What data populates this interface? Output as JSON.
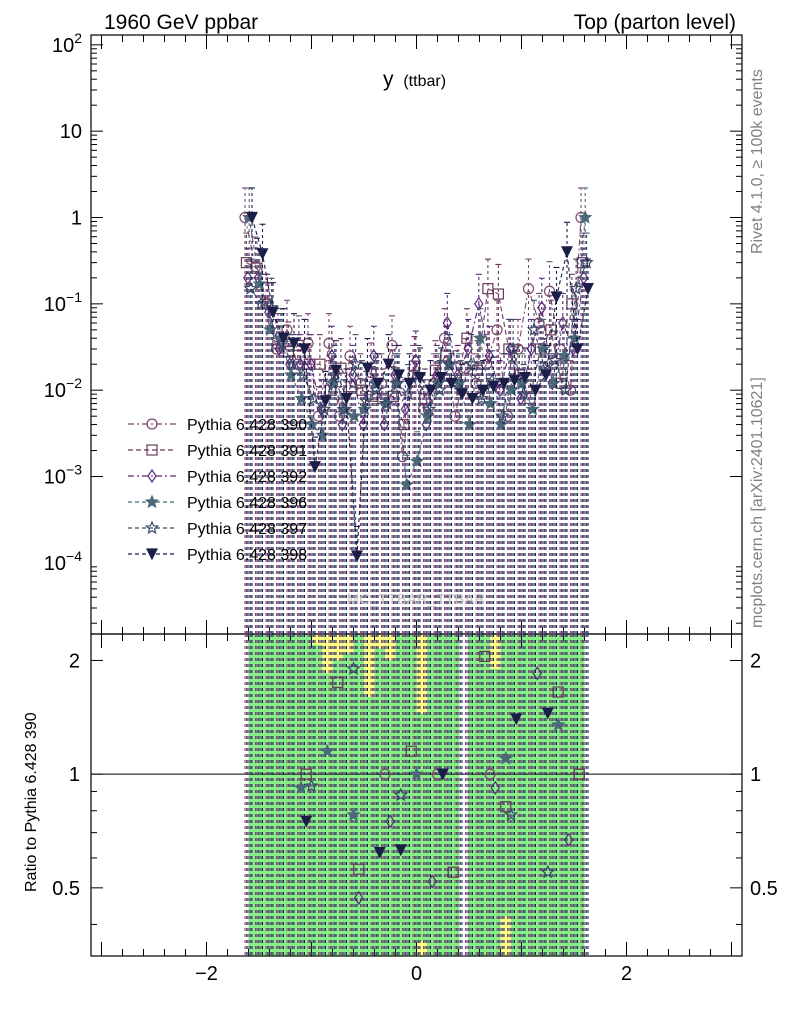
{
  "header": {
    "left": "1960 GeV ppbar",
    "right": "Top (parton level)"
  },
  "watermark": "MC_TTBAR_TTBAR",
  "side_labels": {
    "rivet": "Rivet 4.1.0, ≥ 100k events",
    "mcplots": "mcplots.cern.ch [arXiv:2401.10621]"
  },
  "chart_data": {
    "type": "line",
    "title": "y",
    "title_sub": "(ttbar)",
    "xlabel": "",
    "ylabel_top": "",
    "ylabel_ratio": "Ratio to Pythia 6.428 390",
    "xlim": [
      -3.1,
      3.1
    ],
    "ylim_top": [
      1.5e-05,
      130
    ],
    "yscale_top": "log",
    "ylim_ratio": [
      0.33,
      2.35
    ],
    "yscale_ratio": "log",
    "x_ticks": [
      -2,
      0,
      2
    ],
    "x_tick_labels": [
      "−2",
      "0",
      "2"
    ],
    "y_ticks_top": [
      {
        "value": 100,
        "base": "10",
        "exp": "2"
      },
      {
        "value": 10,
        "base": "10",
        "exp": ""
      },
      {
        "value": 1,
        "base": "1",
        "exp": ""
      },
      {
        "value": 0.1,
        "base": "10",
        "exp": "−1"
      },
      {
        "value": 0.01,
        "base": "10",
        "exp": "−2"
      },
      {
        "value": 0.001,
        "base": "10",
        "exp": "−3"
      },
      {
        "value": 0.0001,
        "base": "10",
        "exp": "−4"
      }
    ],
    "y_ticks_ratio": [
      {
        "value": 0.5,
        "label": "0.5"
      },
      {
        "value": 1,
        "label": "1"
      },
      {
        "value": 2,
        "label": "2"
      }
    ],
    "x": [
      -1.6,
      -1.5,
      -1.4,
      -1.3,
      -1.2,
      -1.1,
      -1.0,
      -0.9,
      -0.8,
      -0.7,
      -0.6,
      -0.5,
      -0.4,
      -0.3,
      -0.2,
      -0.1,
      0.0,
      0.1,
      0.2,
      0.3,
      0.4,
      0.5,
      0.6,
      0.7,
      0.8,
      0.9,
      1.0,
      1.1,
      1.2,
      1.3,
      1.4,
      1.5,
      1.6
    ],
    "legend_position": "middle-left",
    "series": [
      {
        "name": "Pythia 6.428 390",
        "color": "#7a4a6a",
        "marker": "circle-open",
        "values": [
          1.0,
          0.27,
          0.1,
          0.03,
          0.05,
          0.02,
          0.035,
          0.005,
          0.035,
          0.005,
          0.025,
          0.012,
          0.016,
          0.012,
          0.033,
          0.0017,
          0.015,
          0.006,
          0.012,
          0.04,
          0.005,
          0.018,
          0.012,
          0.02,
          0.05,
          0.005,
          0.03,
          0.15,
          0.06,
          0.14,
          0.03,
          0.01,
          1.0
        ]
      },
      {
        "name": "Pythia 6.428 391",
        "color": "#6a3a5a",
        "marker": "square-open",
        "values": [
          0.3,
          0.26,
          0.1,
          0.035,
          0.028,
          0.033,
          0.02,
          0.02,
          0.01,
          0.018,
          0.011,
          0.01,
          0.0085,
          0.008,
          0.0085,
          0.004,
          0.019,
          0.008,
          0.017,
          0.025,
          0.013,
          0.04,
          0.017,
          0.15,
          0.13,
          0.03,
          0.015,
          0.008,
          0.03,
          0.05,
          0.012,
          0.1,
          0.3
        ]
      },
      {
        "name": "Pythia 6.428 392",
        "color": "#5a2a7a",
        "marker": "diamond-open",
        "values": [
          0.2,
          0.2,
          0.08,
          0.03,
          0.02,
          0.02,
          0.02,
          0.006,
          0.025,
          0.004,
          0.015,
          0.004,
          0.025,
          0.004,
          0.015,
          0.006,
          0.022,
          0.004,
          0.015,
          0.06,
          0.015,
          0.03,
          0.1,
          0.025,
          0.01,
          0.03,
          0.008,
          0.03,
          0.09,
          0.012,
          0.06,
          0.03,
          0.2
        ]
      },
      {
        "name": "Pythia 6.428 396",
        "color": "#4a6a7a",
        "marker": "star-filled",
        "values": [
          1.0,
          0.17,
          0.05,
          0.04,
          0.015,
          0.008,
          0.004,
          0.003,
          0.012,
          0.006,
          0.005,
          0.006,
          0.012,
          0.007,
          0.012,
          0.0008,
          0.0015,
          0.005,
          0.012,
          0.02,
          0.012,
          0.004,
          0.04,
          0.007,
          0.004,
          0.01,
          0.012,
          0.006,
          0.03,
          0.012,
          0.025,
          0.04,
          1.0
        ]
      },
      {
        "name": "Pythia 6.428 397",
        "color": "#3a4a6a",
        "marker": "star-open",
        "values": [
          0.15,
          0.1,
          0.09,
          0.035,
          0.02,
          0.015,
          0.008,
          0.006,
          0.015,
          0.006,
          0.02,
          0.0075,
          0.01,
          0.007,
          0.012,
          0.009,
          0.015,
          0.006,
          0.01,
          0.02,
          0.01,
          0.02,
          0.008,
          0.013,
          0.005,
          0.03,
          0.009,
          0.05,
          0.018,
          0.022,
          0.01,
          0.15,
          0.3
        ]
      },
      {
        "name": "Pythia 6.428 398",
        "color": "#1a1e48",
        "marker": "triangle-down-filled",
        "values": [
          1.0,
          0.38,
          0.08,
          0.04,
          0.035,
          0.03,
          0.0013,
          0.0075,
          0.017,
          0.008,
          0.00012,
          0.018,
          0.012,
          0.02,
          0.015,
          0.012,
          0.014,
          0.01,
          0.014,
          0.012,
          0.009,
          0.008,
          0.01,
          0.011,
          0.012,
          0.013,
          0.014,
          0.01,
          0.015,
          0.12,
          0.4,
          0.03,
          0.15
        ]
      }
    ],
    "ratio_points": [
      {
        "series": 0,
        "x": [
          -0.3,
          0.2,
          0.7
        ],
        "values": [
          1.0,
          1.0,
          1.0
        ]
      },
      {
        "series": 1,
        "x": [
          -1.05,
          -0.75,
          -0.55,
          -0.05,
          0.35,
          0.65,
          0.85,
          1.35,
          1.55
        ],
        "values": [
          1.0,
          1.75,
          0.56,
          1.15,
          0.55,
          2.05,
          0.82,
          1.65,
          1.0
        ]
      },
      {
        "series": 2,
        "x": [
          -0.55,
          -0.25,
          0.15,
          0.75,
          1.15,
          1.45
        ],
        "values": [
          0.47,
          0.75,
          0.52,
          0.92,
          1.85,
          0.67
        ]
      },
      {
        "series": 3,
        "x": [
          -1.1,
          -0.85,
          -0.6,
          0.0,
          0.85,
          1.35
        ],
        "values": [
          0.92,
          1.15,
          0.78,
          1.0,
          1.1,
          1.35
        ]
      },
      {
        "series": 4,
        "x": [
          -1.0,
          -0.6,
          -0.15,
          0.9,
          1.25
        ],
        "values": [
          0.93,
          1.9,
          0.88,
          0.78,
          0.55
        ]
      },
      {
        "series": 5,
        "x": [
          -1.05,
          -0.35,
          -0.15,
          0.25,
          0.95,
          1.25
        ],
        "values": [
          0.75,
          0.62,
          0.63,
          1.0,
          1.4,
          1.45
        ]
      }
    ],
    "ratio_bands": {
      "x_edges": [
        -1.6,
        -1.5,
        -1.4,
        -1.3,
        -1.2,
        -1.1,
        -1.0,
        -0.9,
        -0.8,
        -0.7,
        -0.6,
        -0.5,
        -0.4,
        -0.3,
        -0.2,
        -0.1,
        0.0,
        0.1,
        0.2,
        0.3,
        0.4,
        0.5,
        0.6,
        0.7,
        0.8,
        0.9,
        1.0,
        1.1,
        1.2,
        1.3,
        1.4,
        1.5,
        1.6
      ],
      "yellow_lo": [
        0.33,
        0.33,
        0.33,
        0.33,
        0.33,
        0.33,
        0.33,
        0.33,
        0.33,
        0.33,
        0.33,
        0.33,
        0.33,
        0.33,
        0.33,
        0.33,
        0.33,
        0.33,
        0.33,
        0.33,
        0.33,
        0.33,
        0.33,
        0.33,
        0.33,
        0.33,
        0.33,
        0.33,
        0.33,
        0.33,
        0.33,
        0.33
      ],
      "yellow_hi": [
        2.35,
        2.35,
        2.35,
        2.35,
        2.35,
        2.35,
        2.35,
        2.35,
        2.35,
        2.35,
        2.35,
        2.35,
        2.35,
        2.35,
        2.35,
        2.35,
        2.35,
        2.35,
        2.35,
        2.35,
        2.35,
        2.35,
        2.35,
        2.35,
        2.35,
        2.35,
        2.35,
        2.35,
        2.35,
        2.35,
        2.35,
        2.35
      ],
      "green_lo": [
        0.33,
        0.33,
        0.33,
        0.33,
        0.33,
        0.33,
        0.33,
        0.33,
        0.33,
        0.33,
        0.33,
        0.33,
        0.33,
        0.33,
        0.33,
        0.33,
        0.36,
        0.33,
        0.33,
        0.33,
        0.33,
        0.33,
        0.33,
        0.33,
        0.42,
        0.33,
        0.33,
        0.33,
        0.33,
        0.33,
        0.33,
        0.33
      ],
      "green_hi": [
        2.35,
        2.35,
        2.35,
        2.35,
        2.35,
        2.35,
        2.2,
        1.85,
        2.0,
        2.1,
        2.35,
        1.6,
        2.15,
        2.0,
        2.35,
        2.35,
        1.45,
        2.35,
        2.35,
        2.35,
        2.35,
        2.35,
        2.35,
        1.9,
        2.35,
        2.35,
        2.35,
        2.35,
        2.35,
        2.35,
        2.35,
        2.35
      ]
    }
  }
}
